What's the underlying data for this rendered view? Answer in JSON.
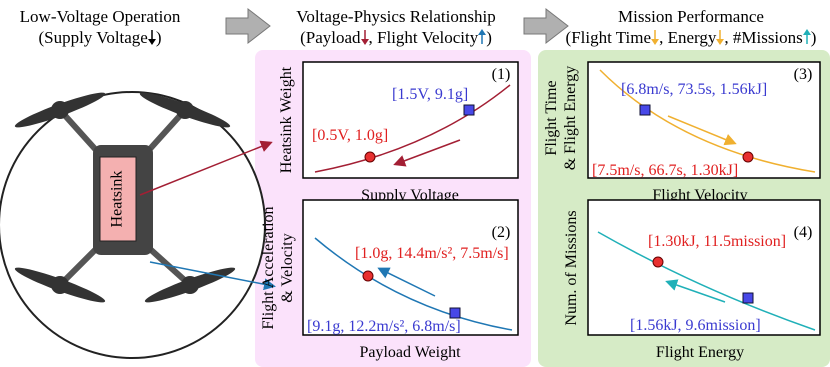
{
  "header": {
    "columns": [
      {
        "title": "Low-Voltage Operation",
        "subtitle": [
          "(Supply Voltage",
          ")"
        ]
      },
      {
        "title": "Voltage-Physics Relationship",
        "subtitle": [
          "(Payload",
          ", Flight Velocity",
          ")"
        ]
      },
      {
        "title": "Mission Performance",
        "subtitle": [
          "(Flight Time",
          ", Energy",
          ", #Missions",
          ")"
        ]
      }
    ]
  },
  "drone": {
    "label": "Heatsink"
  },
  "panels": [
    {
      "number": "(1)",
      "y_label": [
        "Heatsink Weight"
      ],
      "x_label": "Supply Voltage",
      "point_labels": [
        "[1.5V, 9.1g]",
        "[0.5V, 1.0g]"
      ]
    },
    {
      "number": "(2)",
      "y_label": [
        "Flight Acceleration",
        "& Velocity"
      ],
      "x_label": "Payload Weight",
      "point_labels": [
        "[1.0g, 14.4m/s², 7.5m/s]",
        "[9.1g, 12.2m/s², 6.8m/s]"
      ]
    },
    {
      "number": "(3)",
      "y_label": [
        "Flight Time",
        "& Flight Energy"
      ],
      "x_label": "Flight Velocity",
      "point_labels": [
        "[6.8m/s, 73.5s, 1.56kJ]",
        "[7.5m/s, 66.7s, 1.30kJ]"
      ]
    },
    {
      "number": "(4)",
      "y_label": [
        "Num. of Missions"
      ],
      "x_label": "Flight Energy",
      "point_labels": [
        "[1.30kJ, 11.5mission]",
        "[1.56kJ, 9.6mission]"
      ]
    }
  ]
}
